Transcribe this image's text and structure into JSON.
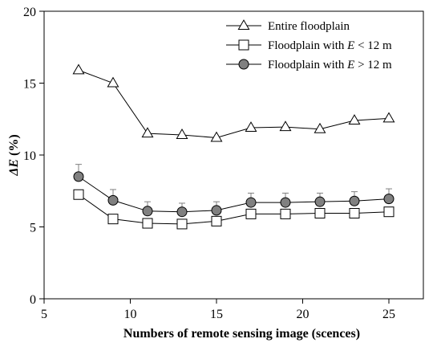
{
  "chart_data": {
    "type": "line",
    "xlabel": "Numbers of remote sensing image (scences)",
    "ylabel_main": "ΔE",
    "ylabel_unit": " (%)",
    "xlim": [
      5,
      27
    ],
    "ylim": [
      0,
      20
    ],
    "xticks": [
      5,
      10,
      15,
      20,
      25
    ],
    "yticks": [
      0,
      5,
      10,
      15,
      20
    ],
    "x": [
      7,
      9,
      11,
      13,
      15,
      17,
      19,
      21,
      23,
      25
    ],
    "legend_position": "top-right",
    "series": [
      {
        "name_prefix": "Entire floodplain",
        "name_var": "",
        "name_suffix": "",
        "marker": "triangle-open",
        "values": [
          15.9,
          15.0,
          11.5,
          11.4,
          11.2,
          11.9,
          11.95,
          11.8,
          12.4,
          12.55
        ],
        "error": []
      },
      {
        "name_prefix": "Floodplain with ",
        "name_var": "E",
        "name_suffix": " < 12 m",
        "marker": "square-open",
        "values": [
          7.25,
          5.55,
          5.25,
          5.2,
          5.4,
          5.9,
          5.9,
          5.95,
          5.95,
          6.05
        ],
        "error": []
      },
      {
        "name_prefix": "Floodplain with ",
        "name_var": "E",
        "name_suffix": " > 12 m",
        "marker": "circle-filled",
        "values": [
          8.5,
          6.85,
          6.1,
          6.05,
          6.15,
          6.7,
          6.7,
          6.75,
          6.8,
          6.95
        ],
        "error": [
          0.85,
          0.75,
          0.65,
          0.6,
          0.6,
          0.65,
          0.65,
          0.6,
          0.65,
          0.7
        ]
      }
    ],
    "colors": {
      "line": "#000000",
      "marker_fill_filled": "#808080",
      "marker_fill_open": "#ffffff",
      "errorbar": "#808080"
    }
  }
}
